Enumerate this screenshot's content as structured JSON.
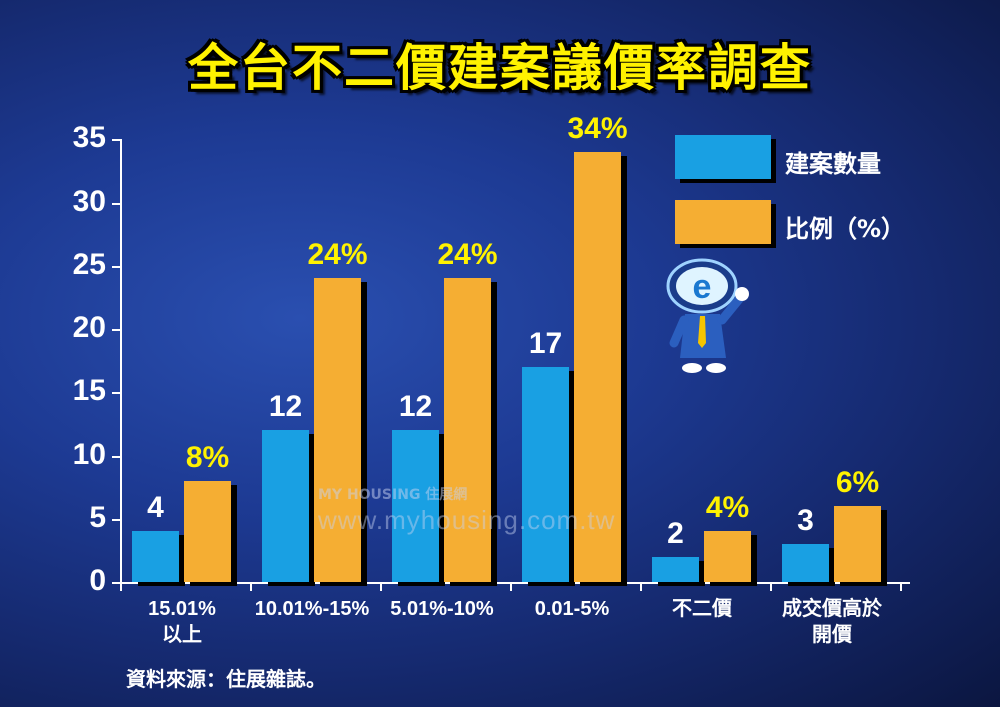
{
  "title": "全台不二價建案議價率調查",
  "legend": [
    {
      "label": "建案數量",
      "color": "#19a0e3"
    },
    {
      "label": "比例（%）",
      "color": "#f5ae33"
    }
  ],
  "source": "資料來源：住展雜誌。",
  "watermark": {
    "logo": "MY HOUSING 住展網",
    "url": "www.myhousing.com.tw"
  },
  "chart_data": {
    "type": "bar",
    "title": "全台不二價建案議價率調查",
    "xlabel": "",
    "ylabel": "",
    "ylim": [
      0,
      35
    ],
    "yticks": [
      0,
      5,
      10,
      15,
      20,
      25,
      30,
      35
    ],
    "grid": false,
    "legend_position": "top-right",
    "categories": [
      "15.01%以上",
      "10.01%-15%",
      "5.01%-10%",
      "0.01-5%",
      "不二價",
      "成交價高於開價"
    ],
    "category_lines": [
      [
        "15.01%",
        "以上"
      ],
      [
        "10.01%-15%"
      ],
      [
        "5.01%-10%"
      ],
      [
        "0.01-5%"
      ],
      [
        "不二價"
      ],
      [
        "成交價高於",
        "開價"
      ]
    ],
    "series": [
      {
        "name": "建案數量",
        "values": [
          4,
          12,
          12,
          17,
          2,
          3
        ],
        "labels": [
          "4",
          "12",
          "12",
          "17",
          "2",
          "3"
        ],
        "color": "#19a0e3"
      },
      {
        "name": "比例（%）",
        "values": [
          8,
          24,
          24,
          34,
          4,
          6
        ],
        "labels": [
          "8%",
          "24%",
          "24%",
          "34%",
          "4%",
          "6%"
        ],
        "color": "#f5ae33"
      }
    ]
  }
}
